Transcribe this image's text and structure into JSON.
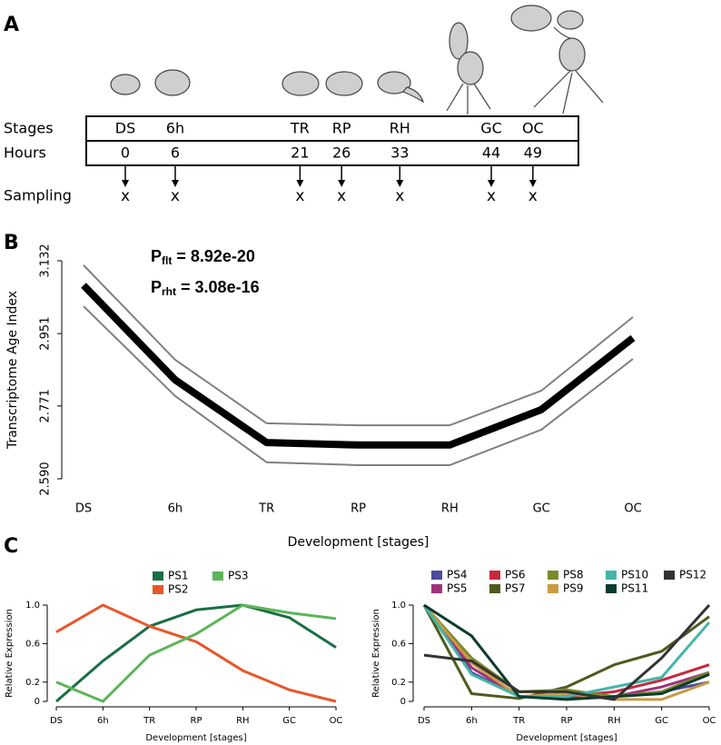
{
  "panel_labels": [
    "A",
    "B",
    "C"
  ],
  "stages_panel": {
    "row_labels": [
      "Stages",
      "Hours",
      "Sampling"
    ],
    "stages": [
      "DS",
      "6h",
      "TR",
      "RP",
      "RH",
      "GC",
      "OC"
    ],
    "hours": [
      0,
      6,
      21,
      26,
      33,
      44,
      49
    ],
    "sampling": [
      "x",
      "x",
      "x",
      "x",
      "x",
      "x",
      "x"
    ]
  },
  "chart_data": [
    {
      "type": "line",
      "categories": [
        "DS",
        "6h",
        "TR",
        "RP",
        "RH",
        "GC",
        "OC"
      ],
      "xlabel": "Development [stages]",
      "ylabel": "Transcriptome Age Index",
      "ylim": [
        2.59,
        3.132
      ],
      "yticks": [
        {
          "value": 2.59,
          "label": "2.590"
        },
        2.771,
        2.951,
        3.132
      ],
      "annotations": [
        {
          "main": "P",
          "sub": "flt",
          "tail": " = 8.92e-20"
        },
        {
          "main": "P",
          "sub": "rht",
          "tail": " = 3.08e-16"
        }
      ],
      "series": [
        {
          "color": "#000000",
          "line_width": 8,
          "values": [
            3.071,
            2.836,
            2.68,
            2.674,
            2.674,
            2.762,
            2.94
          ]
        },
        {
          "color": "#808080",
          "line_width": 2,
          "values": [
            3.121,
            2.886,
            2.728,
            2.723,
            2.723,
            2.809,
            2.992
          ]
        },
        {
          "color": "#808080",
          "line_width": 2,
          "values": [
            3.019,
            2.796,
            2.631,
            2.624,
            2.624,
            2.712,
            2.888
          ]
        }
      ]
    },
    {
      "type": "line",
      "categories": [
        "DS",
        "6h",
        "TR",
        "RP",
        "RH",
        "GC",
        "OC"
      ],
      "xlabel": "Development [stages]",
      "ylabel": "Relative Expression",
      "ylim": [
        0,
        1
      ],
      "yticks": [
        0,
        0.2,
        0.6,
        {
          "value": 1,
          "label": "1.0"
        }
      ],
      "series": [
        {
          "name": "PS1",
          "color": "#1a6e45",
          "line_width": 3,
          "values": [
            0,
            0.42,
            0.78,
            0.95,
            1.0,
            0.87,
            0.56
          ]
        },
        {
          "name": "PS2",
          "color": "#e8562a",
          "line_width": 3,
          "values": [
            0.72,
            1.0,
            0.78,
            0.62,
            0.32,
            0.12,
            0
          ]
        },
        {
          "name": "PS3",
          "color": "#5db55a",
          "line_width": 3,
          "values": [
            0.2,
            0,
            0.48,
            0.7,
            1.0,
            0.92,
            0.86
          ]
        }
      ]
    },
    {
      "type": "line",
      "categories": [
        "DS",
        "6h",
        "TR",
        "RP",
        "RH",
        "GC",
        "OC"
      ],
      "xlabel": "Development [stages]",
      "ylabel": "Relative Expression",
      "ylim": [
        0,
        1
      ],
      "yticks": [
        0,
        0.2,
        0.6,
        {
          "value": 1,
          "label": "1.0"
        }
      ],
      "series": [
        {
          "name": "PS4",
          "color": "#4b4a9a",
          "line_width": 3,
          "values": [
            1,
            0.3,
            0.05,
            0.05,
            0.05,
            0.1,
            0.2
          ]
        },
        {
          "name": "PS5",
          "color": "#a0317d",
          "line_width": 3,
          "values": [
            1,
            0.35,
            0.05,
            0.08,
            0.05,
            0.15,
            0.3
          ]
        },
        {
          "name": "PS6",
          "color": "#c8283e",
          "line_width": 3,
          "values": [
            1,
            0.4,
            0.05,
            0.05,
            0.1,
            0.22,
            0.38
          ]
        },
        {
          "name": "PS7",
          "color": "#4d5a1e",
          "line_width": 3,
          "values": [
            1,
            0.08,
            0.03,
            0.15,
            0.38,
            0.52,
            0.88
          ]
        },
        {
          "name": "PS8",
          "color": "#7a8a2a",
          "line_width": 3,
          "values": [
            1,
            0.45,
            0.1,
            0.12,
            0.05,
            0.1,
            0.3
          ]
        },
        {
          "name": "PS9",
          "color": "#c99a43",
          "line_width": 3,
          "values": [
            1,
            0.4,
            0.05,
            0.08,
            0.02,
            0.02,
            0.2
          ]
        },
        {
          "name": "PS10",
          "color": "#44b5a8",
          "line_width": 3,
          "values": [
            1,
            0.28,
            0.05,
            0.05,
            0.15,
            0.25,
            0.82
          ]
        },
        {
          "name": "PS11",
          "color": "#0b3b2e",
          "line_width": 3,
          "values": [
            1,
            0.68,
            0.05,
            0.02,
            0.05,
            0.08,
            0.28
          ]
        },
        {
          "name": "PS12",
          "color": "#333333",
          "line_width": 3,
          "values": [
            0.48,
            0.42,
            0.1,
            0.1,
            0.02,
            0.45,
            1.0
          ]
        }
      ]
    }
  ]
}
